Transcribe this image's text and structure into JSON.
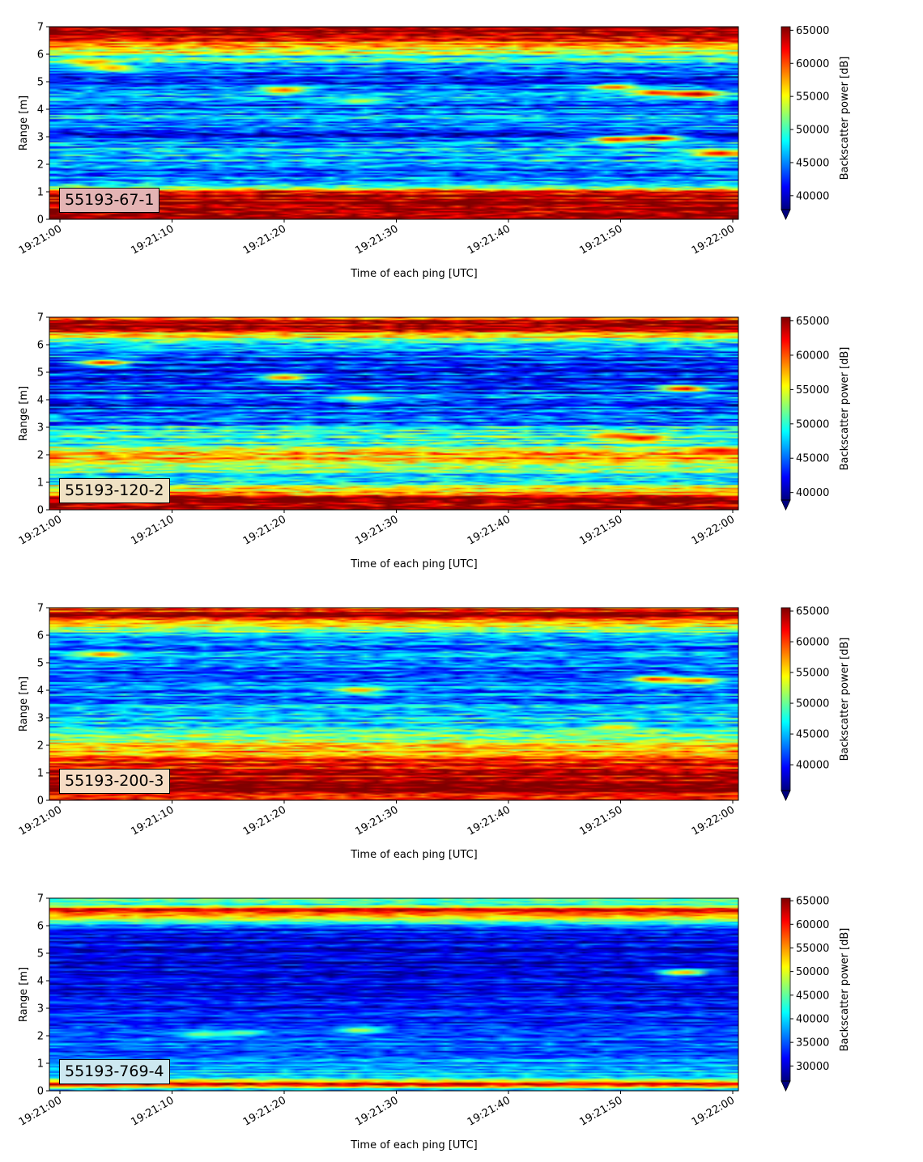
{
  "chart_data": [
    {
      "type": "heatmap",
      "label": "55193-67-1",
      "label_box_color": "#e4b4b4",
      "xlabel": "Time of each ping [UTC]",
      "ylabel": "Range [m]",
      "xticks": [
        "19:21:00",
        "19:21:10",
        "19:21:20",
        "19:21:30",
        "19:21:40",
        "19:21:50",
        "19:22:00"
      ],
      "yticks": [
        "0",
        "1",
        "2",
        "3",
        "4",
        "5",
        "6",
        "7"
      ],
      "ylim": [
        0,
        7
      ],
      "colorbar_label": "Backscatter power [dB]",
      "colorbar_ticks": [
        "40000",
        "45000",
        "50000",
        "55000",
        "60000",
        "65000"
      ],
      "colorbar_range": [
        37900,
        65535
      ],
      "colormap": "jet",
      "colorbar_extend": "min",
      "profile": [
        {
          "range": 0.1,
          "value": 63000
        },
        {
          "range": 0.3,
          "value": 65500
        },
        {
          "range": 0.6,
          "value": 65500
        },
        {
          "range": 1.0,
          "value": 63000
        },
        {
          "range": 1.3,
          "value": 45000
        },
        {
          "range": 1.7,
          "value": 44000
        },
        {
          "range": 2.0,
          "value": 48000
        },
        {
          "range": 2.4,
          "value": 46000
        },
        {
          "range": 2.8,
          "value": 46000
        },
        {
          "range": 3.1,
          "value": 42000
        },
        {
          "range": 3.5,
          "value": 46000
        },
        {
          "range": 4.0,
          "value": 44000
        },
        {
          "range": 4.5,
          "value": 45000
        },
        {
          "range": 5.0,
          "value": 43000
        },
        {
          "range": 5.5,
          "value": 45000
        },
        {
          "range": 5.9,
          "value": 50000
        },
        {
          "range": 6.2,
          "value": 57000
        },
        {
          "range": 6.5,
          "value": 60000
        },
        {
          "range": 6.75,
          "value": 65500
        },
        {
          "range": 7.0,
          "value": 65500
        }
      ],
      "features": [
        {
          "t": 0.06,
          "range": 5.7,
          "value": 59000
        },
        {
          "t": 0.09,
          "range": 5.5,
          "value": 58000
        },
        {
          "t": 0.34,
          "range": 4.7,
          "value": 60000
        },
        {
          "t": 0.45,
          "range": 4.3,
          "value": 54000
        },
        {
          "t": 0.82,
          "range": 4.8,
          "value": 60000
        },
        {
          "t": 0.88,
          "range": 4.6,
          "value": 62000
        },
        {
          "t": 0.94,
          "range": 4.55,
          "value": 65000
        },
        {
          "t": 0.82,
          "range": 2.9,
          "value": 62000
        },
        {
          "t": 0.88,
          "range": 2.95,
          "value": 65000
        },
        {
          "t": 0.97,
          "range": 2.4,
          "value": 63000
        }
      ]
    },
    {
      "type": "heatmap",
      "label": "55193-120-2",
      "label_box_color": "#f0e2c4",
      "xlabel": "Time of each ping [UTC]",
      "ylabel": "Range [m]",
      "xticks": [
        "19:21:00",
        "19:21:10",
        "19:21:20",
        "19:21:30",
        "19:21:40",
        "19:21:50",
        "19:22:00"
      ],
      "yticks": [
        "0",
        "1",
        "2",
        "3",
        "4",
        "5",
        "6",
        "7"
      ],
      "ylim": [
        0,
        7
      ],
      "colorbar_label": "Backscatter power [dB]",
      "colorbar_ticks": [
        "40000",
        "45000",
        "50000",
        "55000",
        "60000",
        "65000"
      ],
      "colorbar_range": [
        38900,
        65535
      ],
      "colormap": "jet",
      "colorbar_extend": "min",
      "profile": [
        {
          "range": 0.1,
          "value": 64000
        },
        {
          "range": 0.35,
          "value": 65500
        },
        {
          "range": 0.6,
          "value": 58000
        },
        {
          "range": 0.9,
          "value": 52000
        },
        {
          "range": 1.2,
          "value": 48000
        },
        {
          "range": 1.5,
          "value": 53000
        },
        {
          "range": 1.8,
          "value": 57000
        },
        {
          "range": 2.1,
          "value": 56000
        },
        {
          "range": 2.5,
          "value": 49000
        },
        {
          "range": 2.9,
          "value": 51000
        },
        {
          "range": 3.2,
          "value": 45000
        },
        {
          "range": 3.6,
          "value": 44000
        },
        {
          "range": 4.0,
          "value": 45000
        },
        {
          "range": 4.5,
          "value": 44000
        },
        {
          "range": 5.0,
          "value": 43000
        },
        {
          "range": 5.5,
          "value": 44000
        },
        {
          "range": 6.0,
          "value": 48000
        },
        {
          "range": 6.3,
          "value": 55000
        },
        {
          "range": 6.6,
          "value": 62000
        },
        {
          "range": 6.8,
          "value": 65500
        },
        {
          "range": 7.0,
          "value": 60000
        }
      ],
      "features": [
        {
          "t": 0.08,
          "range": 5.35,
          "value": 62000
        },
        {
          "t": 0.34,
          "range": 4.8,
          "value": 60000
        },
        {
          "t": 0.45,
          "range": 4.05,
          "value": 56000
        },
        {
          "t": 0.82,
          "range": 2.7,
          "value": 60000
        },
        {
          "t": 0.86,
          "range": 2.6,
          "value": 63000
        },
        {
          "t": 0.92,
          "range": 4.4,
          "value": 64000
        },
        {
          "t": 0.97,
          "range": 2.15,
          "value": 63000
        }
      ]
    },
    {
      "type": "heatmap",
      "label": "55193-200-3",
      "label_box_color": "#f6dcc4",
      "xlabel": "Time of each ping [UTC]",
      "ylabel": "Range [m]",
      "xticks": [
        "19:21:00",
        "19:21:10",
        "19:21:20",
        "19:21:30",
        "19:21:40",
        "19:21:50",
        "19:22:00"
      ],
      "yticks": [
        "0",
        "1",
        "2",
        "3",
        "4",
        "5",
        "6",
        "7"
      ],
      "ylim": [
        0,
        7
      ],
      "colorbar_label": "Backscatter power [dB]",
      "colorbar_ticks": [
        "40000",
        "45000",
        "50000",
        "55000",
        "60000",
        "65000"
      ],
      "colorbar_range": [
        35800,
        65535
      ],
      "colormap": "jet",
      "colorbar_extend": "min",
      "profile": [
        {
          "range": 0.1,
          "value": 63000
        },
        {
          "range": 0.35,
          "value": 65500
        },
        {
          "range": 0.7,
          "value": 64000
        },
        {
          "range": 1.1,
          "value": 63000
        },
        {
          "range": 1.5,
          "value": 60000
        },
        {
          "range": 1.9,
          "value": 56000
        },
        {
          "range": 2.3,
          "value": 52000
        },
        {
          "range": 2.7,
          "value": 47000
        },
        {
          "range": 3.1,
          "value": 45000
        },
        {
          "range": 3.5,
          "value": 44000
        },
        {
          "range": 4.0,
          "value": 43000
        },
        {
          "range": 4.5,
          "value": 42000
        },
        {
          "range": 5.0,
          "value": 42000
        },
        {
          "range": 5.5,
          "value": 43000
        },
        {
          "range": 6.0,
          "value": 46000
        },
        {
          "range": 6.3,
          "value": 53000
        },
        {
          "range": 6.6,
          "value": 62000
        },
        {
          "range": 6.75,
          "value": 65500
        },
        {
          "range": 7.0,
          "value": 58000
        }
      ],
      "features": [
        {
          "t": 0.08,
          "range": 5.3,
          "value": 59000
        },
        {
          "t": 0.45,
          "range": 4.0,
          "value": 58000
        },
        {
          "t": 0.88,
          "range": 4.4,
          "value": 62000
        },
        {
          "t": 0.94,
          "range": 4.35,
          "value": 60000
        },
        {
          "t": 0.82,
          "range": 2.65,
          "value": 56000
        }
      ]
    },
    {
      "type": "heatmap",
      "label": "55193-769-4",
      "label_box_color": "#cde8f0",
      "xlabel": "Time of each ping [UTC]",
      "ylabel": "Range [m]",
      "xticks": [
        "19:21:00",
        "19:21:10",
        "19:21:20",
        "19:21:30",
        "19:21:40",
        "19:21:50",
        "19:22:00"
      ],
      "yticks": [
        "0",
        "1",
        "2",
        "3",
        "4",
        "5",
        "6",
        "7"
      ],
      "ylim": [
        0,
        7
      ],
      "colorbar_label": "Backscatter power [dB]",
      "colorbar_ticks": [
        "30000",
        "35000",
        "40000",
        "45000",
        "50000",
        "55000",
        "60000",
        "65000"
      ],
      "colorbar_range": [
        26800,
        65535
      ],
      "colormap": "jet",
      "colorbar_extend": "min",
      "profile": [
        {
          "range": 0.05,
          "value": 40000
        },
        {
          "range": 0.25,
          "value": 63000
        },
        {
          "range": 0.45,
          "value": 42000
        },
        {
          "range": 0.8,
          "value": 38000
        },
        {
          "range": 1.2,
          "value": 36000
        },
        {
          "range": 1.6,
          "value": 35000
        },
        {
          "range": 2.0,
          "value": 35000
        },
        {
          "range": 2.5,
          "value": 33000
        },
        {
          "range": 3.0,
          "value": 32000
        },
        {
          "range": 3.5,
          "value": 31000
        },
        {
          "range": 4.0,
          "value": 31000
        },
        {
          "range": 4.5,
          "value": 30500
        },
        {
          "range": 5.0,
          "value": 30500
        },
        {
          "range": 5.5,
          "value": 31000
        },
        {
          "range": 5.9,
          "value": 33000
        },
        {
          "range": 6.15,
          "value": 45000
        },
        {
          "range": 6.35,
          "value": 50000
        },
        {
          "range": 6.55,
          "value": 65000
        },
        {
          "range": 6.75,
          "value": 45000
        },
        {
          "range": 7.0,
          "value": 42000
        }
      ],
      "features": [
        {
          "t": 0.92,
          "range": 4.3,
          "value": 55000
        },
        {
          "t": 0.22,
          "range": 2.05,
          "value": 47000
        },
        {
          "t": 0.28,
          "range": 2.1,
          "value": 46000
        },
        {
          "t": 0.45,
          "range": 2.2,
          "value": 49000
        }
      ]
    }
  ]
}
